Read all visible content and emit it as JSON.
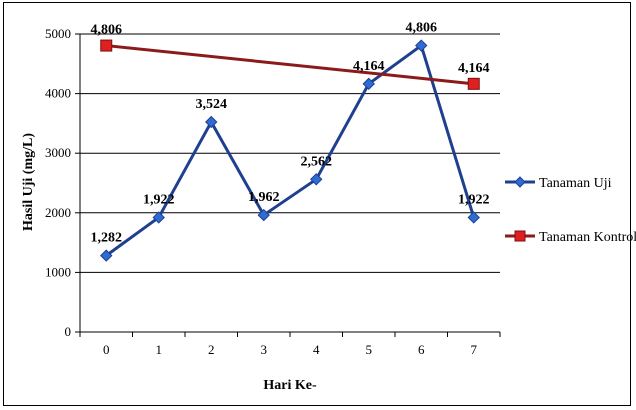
{
  "chart_data": {
    "type": "line",
    "x": [
      0,
      1,
      2,
      3,
      4,
      5,
      6,
      7
    ],
    "tick_labels_x": [
      "0",
      "1",
      "2",
      "3",
      "4",
      "5",
      "6",
      "7"
    ],
    "tick_labels_y": [
      "0",
      "1000",
      "2000",
      "3000",
      "4000",
      "5000"
    ],
    "xlabel": "Hari Ke-",
    "ylabel": "Hasil Uji (mg/L)",
    "ylim": [
      0,
      5000
    ],
    "grid": "horizontal",
    "legend_position": "right",
    "series": [
      {
        "name": "Tanaman Uji",
        "color": "#1F3F8F",
        "marker": "diamond",
        "x": [
          0,
          1,
          2,
          3,
          4,
          5,
          6,
          7
        ],
        "values": [
          1282,
          1922,
          3524,
          1962,
          2562,
          4164,
          4806,
          1922
        ],
        "labels": [
          "1,282",
          "1,922",
          "3,524",
          "1,962",
          "2,562",
          "4,164",
          "4,806",
          "1,922"
        ]
      },
      {
        "name": "Tanaman Kontrol",
        "color": "#8B1A1A",
        "marker_color": "#E02020",
        "marker": "square",
        "x": [
          0,
          7
        ],
        "values": [
          4806,
          4164
        ],
        "labels": [
          "4,806",
          "4,164"
        ]
      }
    ]
  }
}
